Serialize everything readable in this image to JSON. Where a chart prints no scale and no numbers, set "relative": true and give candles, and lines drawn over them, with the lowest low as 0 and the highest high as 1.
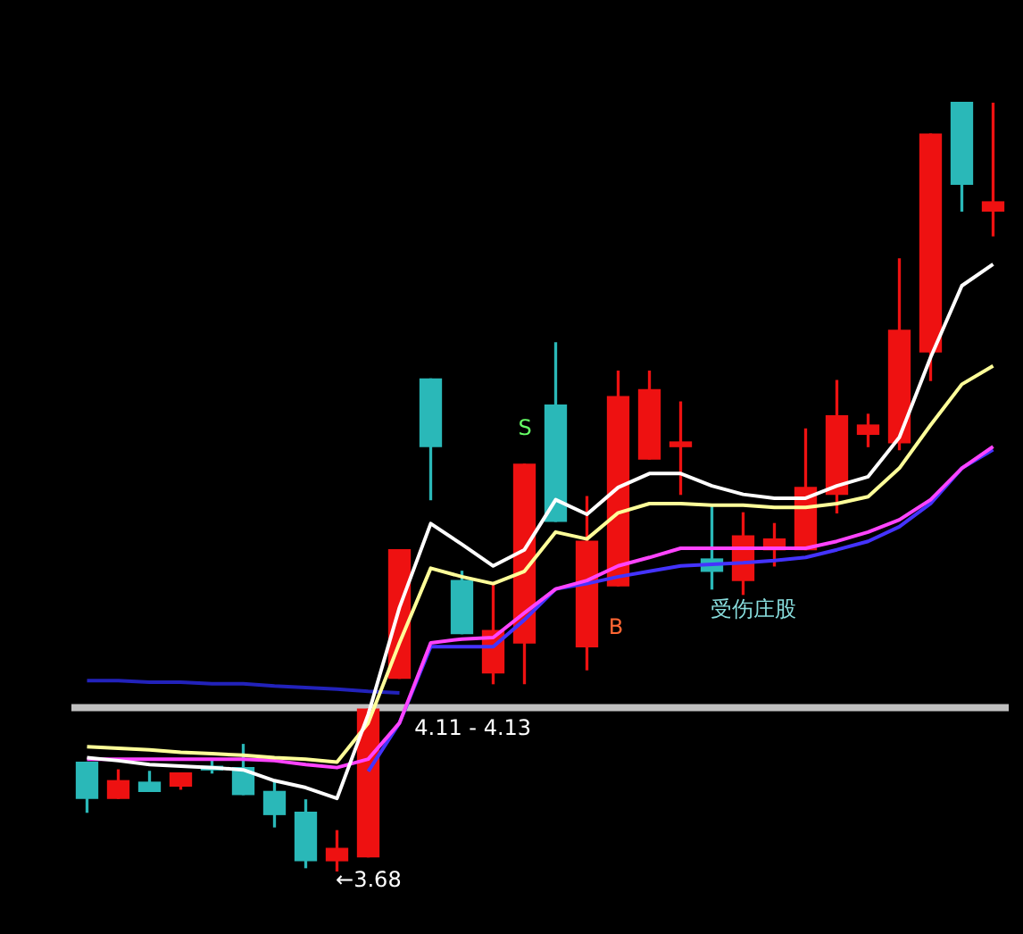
{
  "chart_data": {
    "type": "candlestick",
    "relative": true,
    "legend": false,
    "categories": [
      null,
      null,
      null,
      null,
      null,
      null,
      null,
      null,
      null,
      null,
      null,
      null,
      null,
      null,
      null,
      null,
      null,
      null,
      null,
      null,
      null,
      null,
      null,
      null,
      null,
      null,
      null,
      null,
      null,
      null
    ],
    "ohlc": [
      [
        0.142,
        0.142,
        0.077,
        0.095
      ],
      [
        0.095,
        0.132,
        0.095,
        0.118
      ],
      [
        0.116,
        0.13,
        0.104,
        0.104
      ],
      [
        0.111,
        0.128,
        0.107,
        0.128
      ],
      [
        0.135,
        0.146,
        0.128,
        0.132
      ],
      [
        0.135,
        0.165,
        0.1,
        0.1
      ],
      [
        0.104,
        0.118,
        0.058,
        0.074
      ],
      [
        0.077,
        0.093,
        0.005,
        0.014
      ],
      [
        0.014,
        0.053,
        0,
        0.03
      ],
      [
        0.019,
        0.211,
        0.019,
        0.211
      ],
      [
        0.251,
        0.418,
        0.251,
        0.418
      ],
      [
        0.64,
        0.64,
        0.483,
        0.552
      ],
      [
        0.378,
        0.39,
        0.309,
        0.309
      ],
      [
        0.258,
        0.374,
        0.244,
        0.313
      ],
      [
        0.297,
        0.529,
        0.244,
        0.529
      ],
      [
        0.606,
        0.687,
        0.455,
        0.455
      ],
      [
        0.292,
        0.487,
        0.262,
        0.429
      ],
      [
        0.371,
        0.65,
        0.371,
        0.617
      ],
      [
        0.536,
        0.65,
        0.536,
        0.626
      ],
      [
        0.552,
        0.61,
        0.49,
        0.558
      ],
      [
        0.406,
        0.476,
        0.367,
        0.39
      ],
      [
        0.378,
        0.466,
        0.36,
        0.436
      ],
      [
        0.418,
        0.452,
        0.397,
        0.432
      ],
      [
        0.418,
        0.575,
        0.418,
        0.499
      ],
      [
        0.49,
        0.638,
        0.466,
        0.592
      ],
      [
        0.568,
        0.594,
        0.552,
        0.58
      ],
      [
        0.557,
        0.796,
        0.548,
        0.703
      ],
      [
        0.675,
        0.958,
        0.638,
        0.958
      ],
      [
        1,
        1,
        0.858,
        0.893
      ],
      [
        0.858,
        0.998,
        0.826,
        0.87
      ]
    ],
    "colors": [
      "#2ab8b8",
      "#ee1111",
      "#2ab8b8",
      "#ee1111",
      "#2ab8b8",
      "#2ab8b8",
      "#2ab8b8",
      "#2ab8b8",
      "#ee1111",
      "#ee1111",
      "#ee1111",
      "#2ab8b8",
      "#2ab8b8",
      "#ee1111",
      "#ee1111",
      "#2ab8b8",
      "#ee1111",
      "#ee1111",
      "#ee1111",
      "#ee1111",
      "#2ab8b8",
      "#ee1111",
      "#ee1111",
      "#ee1111",
      "#ee1111",
      "#ee1111",
      "#ee1111",
      "#ee1111",
      "#2ab8b8",
      "#ee1111"
    ],
    "series": [
      {
        "type": "line",
        "color": "#ffffff",
        "values": [
          0.148,
          0.144,
          0.139,
          0.137,
          0.135,
          0.132,
          0.118,
          0.109,
          0.095,
          0.204,
          0.343,
          0.452,
          0.425,
          0.397,
          0.418,
          0.483,
          0.464,
          0.499,
          0.517,
          0.517,
          0.501,
          0.49,
          0.485,
          0.485,
          0.501,
          0.513,
          0.564,
          0.668,
          0.761,
          0.789
        ]
      },
      {
        "type": "line",
        "color": "#ffff99",
        "values": [
          0.162,
          0.16,
          0.158,
          0.155,
          0.153,
          0.151,
          0.148,
          0.146,
          0.142,
          0.193,
          0.297,
          0.394,
          0.383,
          0.374,
          0.39,
          0.441,
          0.432,
          0.466,
          0.478,
          0.478,
          0.476,
          0.476,
          0.473,
          0.473,
          0.478,
          0.487,
          0.524,
          0.58,
          0.633,
          0.657
        ]
      },
      {
        "type": "line",
        "color": "#ff44ff",
        "values": [
          0.146,
          0.146,
          0.146,
          0.146,
          0.146,
          0.146,
          0.144,
          0.139,
          0.135,
          0.146,
          0.193,
          0.297,
          0.302,
          0.304,
          0.336,
          0.367,
          0.378,
          0.397,
          0.408,
          0.42,
          0.42,
          0.42,
          0.42,
          0.42,
          0.429,
          0.441,
          0.457,
          0.483,
          0.524,
          0.552
        ]
      },
      {
        "type": "line",
        "color": "#4433ff",
        "values": [
          null,
          null,
          null,
          null,
          null,
          null,
          null,
          null,
          null,
          0.13,
          0.193,
          0.292,
          0.292,
          0.292,
          0.327,
          0.367,
          0.374,
          0.383,
          0.39,
          0.397,
          0.399,
          0.401,
          0.404,
          0.408,
          0.418,
          0.429,
          0.448,
          0.478,
          0.524,
          0.548
        ]
      },
      {
        "type": "line",
        "color": "#2222bb",
        "values": [
          0.248,
          0.248,
          0.246,
          0.246,
          0.244,
          0.244,
          0.241,
          0.239,
          0.237,
          0.234,
          0.232,
          null,
          null,
          null,
          null,
          null,
          null,
          null,
          null,
          null,
          null,
          null,
          null,
          null,
          null,
          null,
          null,
          null,
          null,
          null
        ]
      }
    ],
    "ref_lines": [
      {
        "axis": "y",
        "value": 0.213,
        "color": "#c0c0c0"
      }
    ],
    "annotations": [
      "←3.68",
      "4.11 - 4.13",
      "S",
      "B",
      "受伤庄股"
    ]
  }
}
